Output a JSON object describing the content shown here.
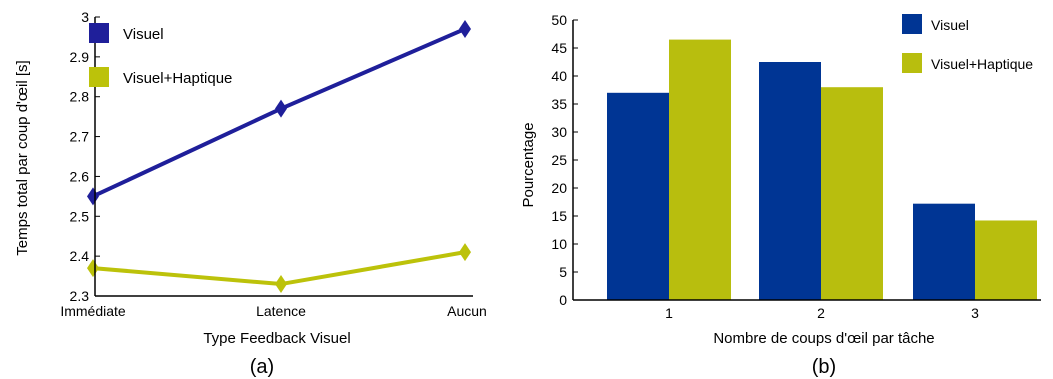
{
  "chart_data": [
    {
      "type": "line",
      "panel_label": "(a)",
      "categories": [
        "Immédiate",
        "Latence",
        "Aucun"
      ],
      "xlabel": "Type Feedback Visuel",
      "ylabel": "Temps total par coup d'œil [s]",
      "ylim": [
        2.3,
        3.0
      ],
      "yticks": [
        "2.3",
        "2.4",
        "2.5",
        "2.6",
        "2.7",
        "2.8",
        "2.9",
        "3"
      ],
      "legend_position": "top-left",
      "grid": false,
      "series": [
        {
          "name": "Visuel",
          "color": "#1f1f9a",
          "values": [
            2.55,
            2.77,
            2.97
          ]
        },
        {
          "name": "Visuel+Haptique",
          "color": "#bcc20a",
          "values": [
            2.37,
            2.33,
            2.41
          ]
        }
      ]
    },
    {
      "type": "bar",
      "panel_label": "(b)",
      "categories": [
        "1",
        "2",
        "3"
      ],
      "xlabel": "Nombre de coups d'œil par tâche",
      "ylabel": "Pourcentage",
      "ylim": [
        0,
        50
      ],
      "yticks": [
        "0",
        "5",
        "10",
        "15",
        "20",
        "25",
        "30",
        "35",
        "40",
        "45",
        "50"
      ],
      "legend_position": "top-right",
      "grid": false,
      "series": [
        {
          "name": "Visuel",
          "color": "#003594",
          "values": [
            37,
            42.5,
            17.2
          ]
        },
        {
          "name": "Visuel+Haptique",
          "color": "#b8be0e",
          "values": [
            46.5,
            38,
            14.2
          ]
        }
      ]
    }
  ]
}
